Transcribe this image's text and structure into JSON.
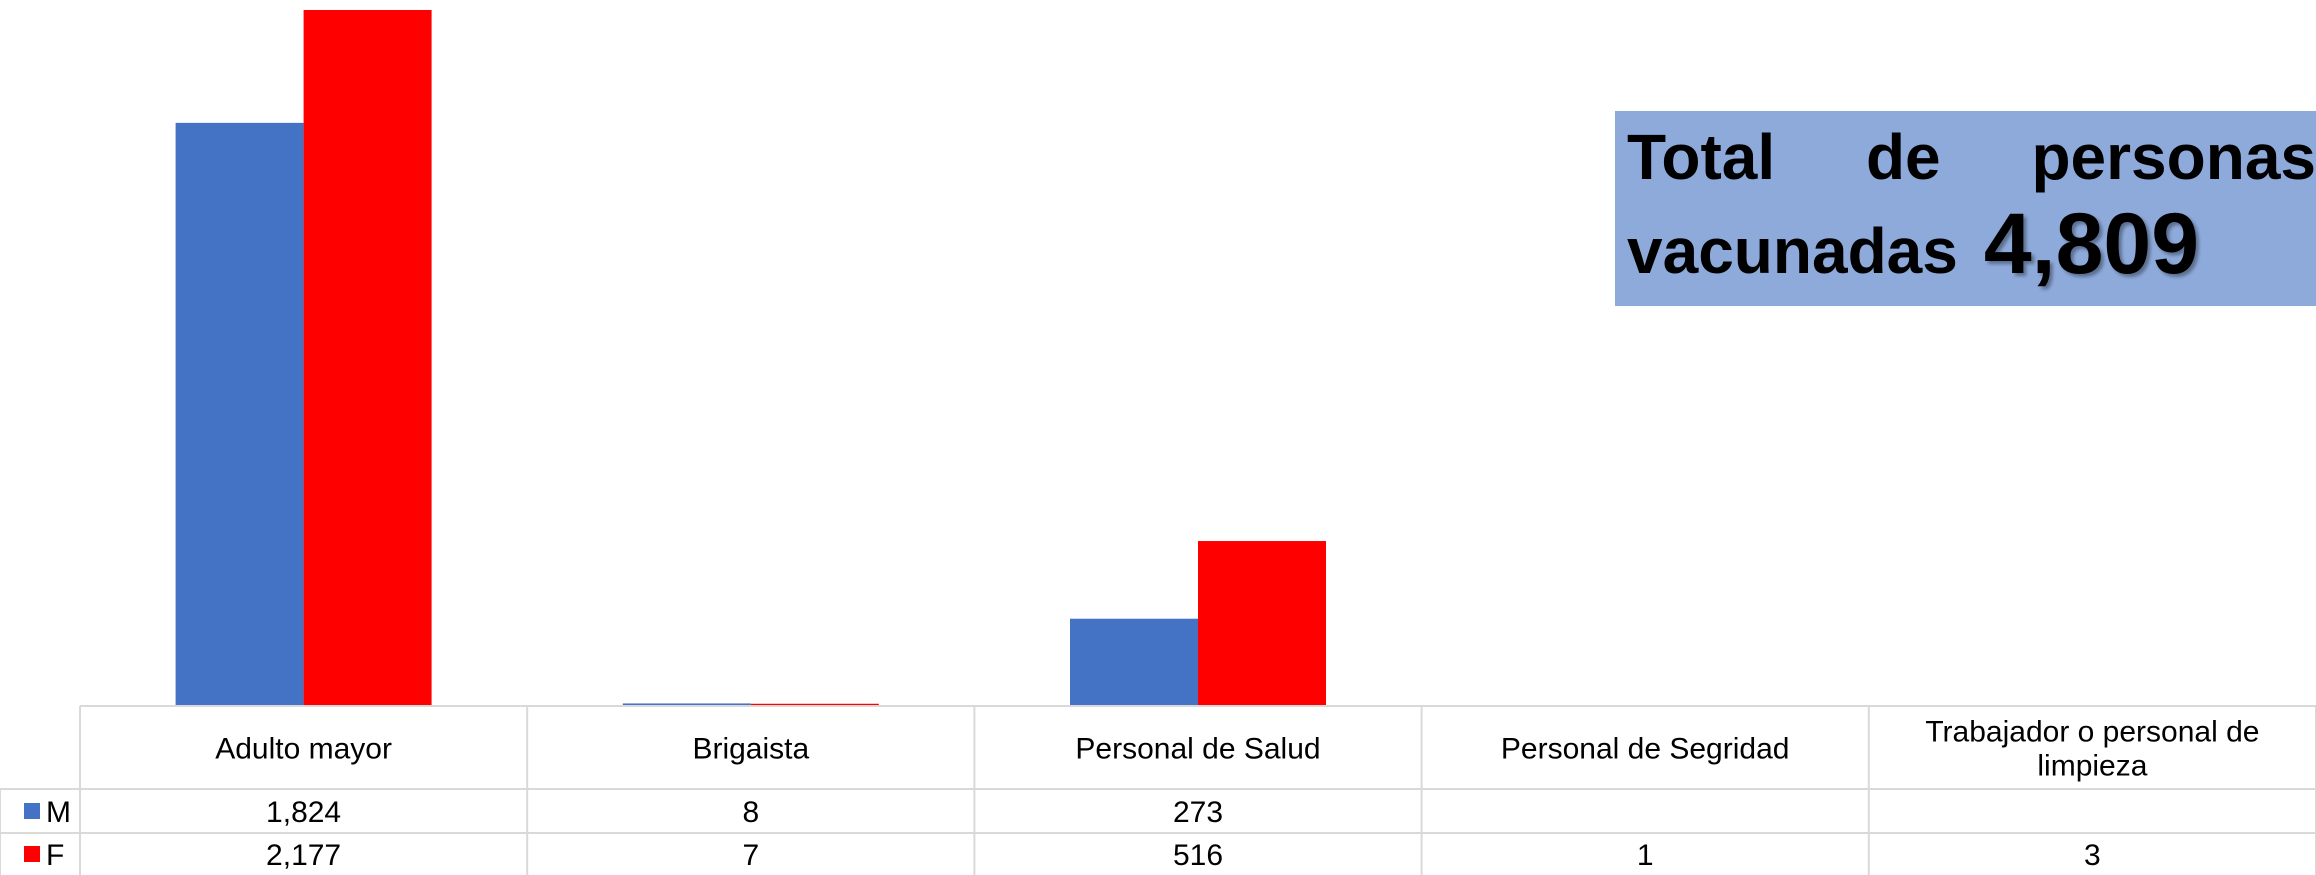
{
  "summary": {
    "words": [
      "Total",
      "de",
      "personas"
    ],
    "line2": "vacunadas",
    "value": "4,809"
  },
  "chart_data": {
    "type": "bar",
    "categories": [
      "Adulto mayor",
      "Brigaista",
      "Personal de Salud",
      "Personal de Segridad",
      "Trabajador o personal de limpieza"
    ],
    "category_lines": [
      [
        "Adulto mayor"
      ],
      [
        "Brigaista"
      ],
      [
        "Personal de Salud"
      ],
      [
        "Personal de Segridad"
      ],
      [
        "Trabajador o personal de",
        "limpieza"
      ]
    ],
    "series": [
      {
        "name": "M",
        "color": "#4472c4",
        "values": [
          1824,
          8,
          273,
          null,
          null
        ],
        "labels": [
          "1,824",
          "8",
          "273",
          "",
          ""
        ]
      },
      {
        "name": "F",
        "color": "#ff0000",
        "values": [
          2177,
          7,
          516,
          1,
          3
        ],
        "labels": [
          "2,177",
          "7",
          "516",
          "1",
          "3"
        ]
      }
    ],
    "ylim": [
      0,
      2177
    ],
    "grid": false,
    "legend": "data-table-left"
  }
}
